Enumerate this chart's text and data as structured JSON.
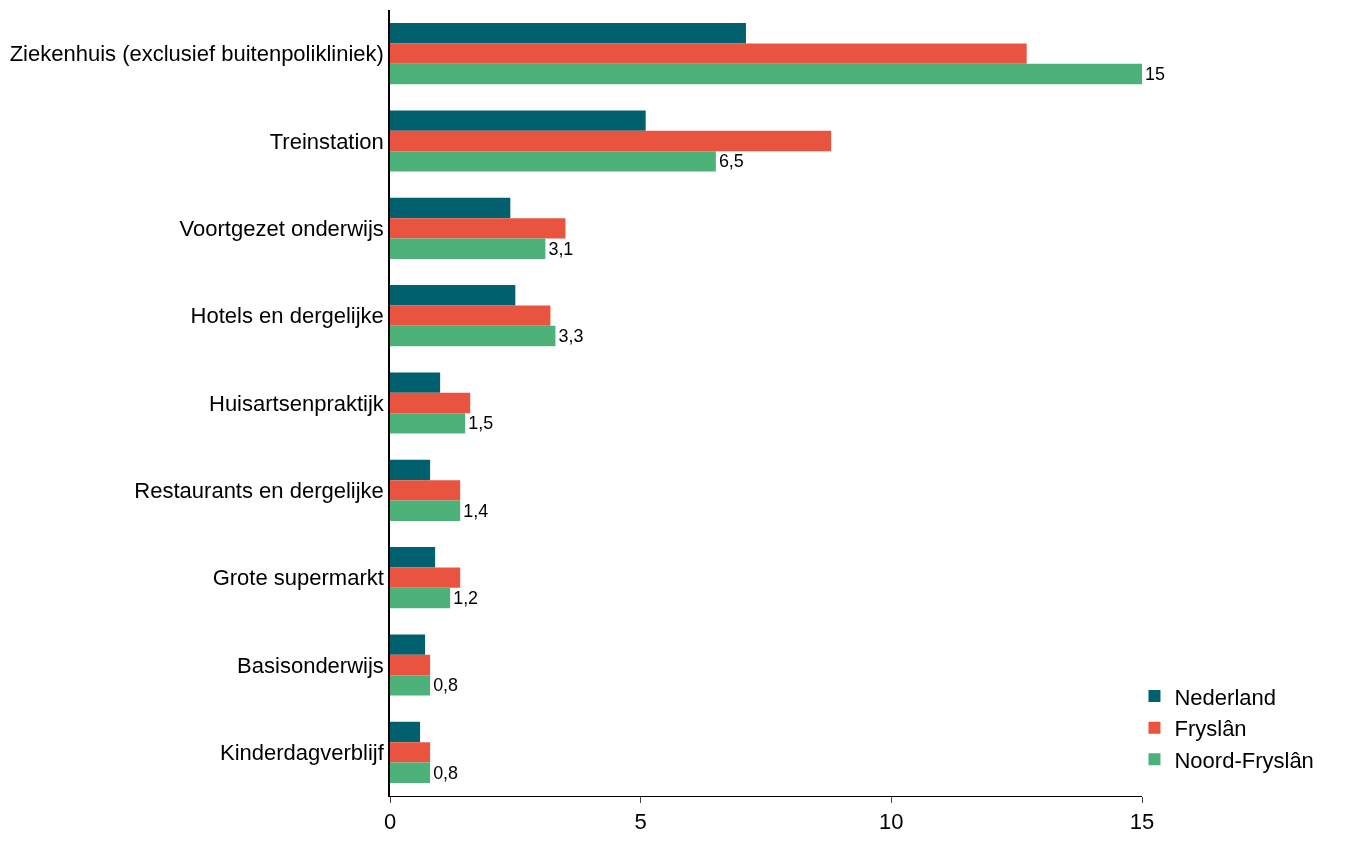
{
  "chart_data": {
    "type": "bar",
    "orientation": "horizontal",
    "categories": [
      "Ziekenhuis (exclusief buitenpolikliniek)",
      "Treinstation",
      "Voortgezet onderwijs",
      "Hotels en dergelijke",
      "Huisartsenpraktijk",
      "Restaurants en dergelijke",
      "Grote supermarkt",
      "Basisonderwijs",
      "Kinderdagverblijf"
    ],
    "series": [
      {
        "name": "Nederland",
        "color": "#00606e",
        "values": [
          7.1,
          5.1,
          2.4,
          2.5,
          1.0,
          0.8,
          0.9,
          0.7,
          0.6
        ]
      },
      {
        "name": "Fryslân",
        "color": "#e85440",
        "values": [
          12.7,
          8.8,
          3.5,
          3.2,
          1.6,
          1.4,
          1.4,
          0.8,
          0.8
        ]
      },
      {
        "name": "Noord-Fryslân",
        "color": "#4cb27a",
        "values": [
          15,
          6.5,
          3.1,
          3.3,
          1.5,
          1.4,
          1.2,
          0.8,
          0.8
        ],
        "value_labels": [
          "15",
          "6,5",
          "3,1",
          "3,3",
          "1,5",
          "1,4",
          "1,2",
          "0,8",
          "0,8"
        ]
      }
    ],
    "xlim": [
      0,
      15
    ],
    "xticks": [
      0,
      5,
      10,
      15
    ],
    "legend": "bottom right"
  }
}
